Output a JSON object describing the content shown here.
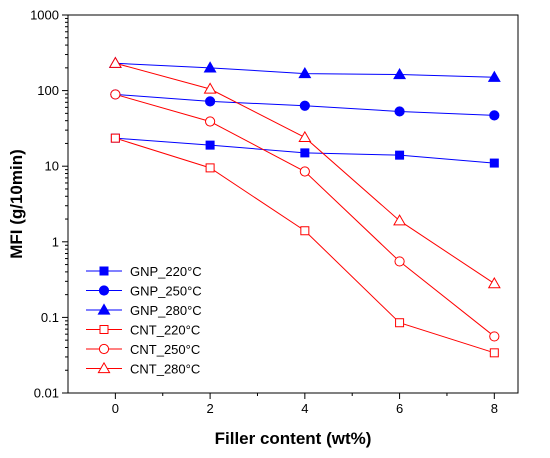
{
  "chart_data": {
    "type": "line",
    "xlabel": "Filler content (wt%)",
    "ylabel": "MFI (g/10min)",
    "xlim": [
      -1,
      8.5
    ],
    "ylim": [
      0.01,
      1000
    ],
    "yscale": "log",
    "x_ticks": [
      0,
      2,
      4,
      6,
      8
    ],
    "x_tick_labels": [
      "0",
      "2",
      "4",
      "6",
      "8"
    ],
    "y_ticks": [
      0.01,
      0.1,
      1,
      10,
      100,
      1000
    ],
    "y_tick_labels": [
      "0.01",
      "0.1",
      "1",
      "10",
      "100",
      "1000"
    ],
    "grid": false,
    "legend_position": "bottom-left",
    "x": [
      0,
      2,
      4,
      6,
      8
    ],
    "series": [
      {
        "name": "GNP_220°C",
        "color": "#0000ff",
        "marker": "square",
        "filled": true,
        "values": [
          23.5,
          19,
          15,
          14,
          11
        ]
      },
      {
        "name": "GNP_250°C",
        "color": "#0000ff",
        "marker": "circle",
        "filled": true,
        "values": [
          89,
          72,
          63,
          53,
          47
        ]
      },
      {
        "name": "GNP_280°C",
        "color": "#0000ff",
        "marker": "triangle",
        "filled": true,
        "values": [
          230,
          200,
          168,
          163,
          150
        ]
      },
      {
        "name": "CNT_220°C",
        "color": "#ff0000",
        "marker": "square",
        "filled": false,
        "values": [
          23.5,
          9.5,
          1.4,
          0.085,
          0.034
        ]
      },
      {
        "name": "CNT_250°C",
        "color": "#ff0000",
        "marker": "circle",
        "filled": false,
        "values": [
          89,
          39,
          8.5,
          0.55,
          0.056
        ]
      },
      {
        "name": "CNT_280°C",
        "color": "#ff0000",
        "marker": "triangle",
        "filled": false,
        "values": [
          230,
          105,
          24,
          1.9,
          0.28
        ]
      }
    ]
  }
}
